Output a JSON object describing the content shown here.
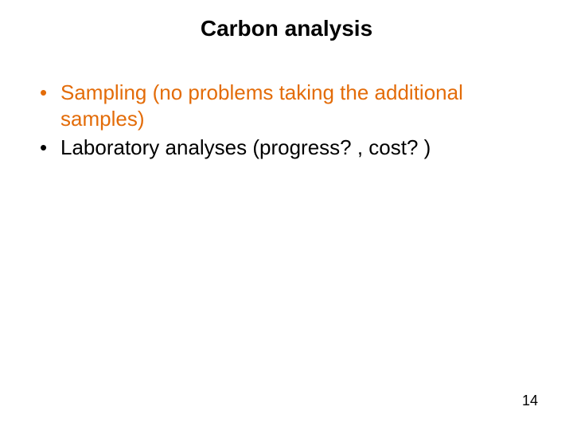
{
  "title": {
    "text": "Carbon analysis",
    "fontsize": 28,
    "color": "#000000",
    "weight": "bold"
  },
  "bullets": {
    "items": [
      {
        "text": "Sampling (no problems taking the additional samples)",
        "color": "#e36c09"
      },
      {
        "text": "Laboratory analyses (progress? , cost? )",
        "color": "#000000"
      }
    ],
    "fontsize": 26
  },
  "page_number": {
    "value": "14",
    "fontsize": 18,
    "color": "#000000"
  },
  "background_color": "#ffffff"
}
